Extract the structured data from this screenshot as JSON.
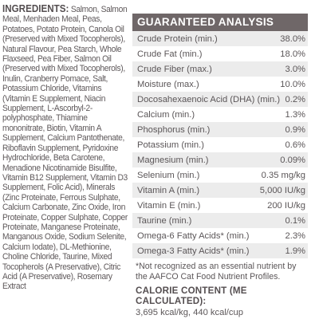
{
  "ingredients": {
    "label": "INGREDIENTS:",
    "text": "Salmon, Salmon Meal, Menhaden Meal, Peas, Potatoes, Potato Protein, Canola Oil (Preserved with Mixed Tocopherols), Natural Flavour, Pea Starch, Whole Flaxseed, Pea Fiber, Salmon Oil (Preserved with Mixed Tocopherols), Inulin, Cranberry Pomace, Salt, Potassium Chloride, Vitamins (Vitamin E Supplement, Niacin Supplement, L-Ascorbyl-2-polyphosphate, Thiamine mononitrate, Biotin, Vitamin A Supplement, Calcium Pantothenate, Riboflavin Supplement, Pyridoxine Hydrochloride, Beta Carotene, Menadione Nicotinamide Bisulfite, Vitamin B12 Supplement, Vitamin D3 Supplement, Folic Acid), Minerals (Zinc Proteinate, Ferrous Sulphate, Calcium Carbonate, Zinc Oxide, Iron Proteinate, Copper Sulphate, Copper Proteinate, Manganese Proteinate, Manganous Oxide, Sodium Selenite, Calcium Iodate), DL-Methionine, Choline Chloride, Taurine, Mixed Tocopherols (A Preservative), Citric Acid (A Preservative), Rosemary Extract"
  },
  "analysis": {
    "title": "GUARANTEED ANALYSIS",
    "rows": [
      {
        "name": "Crude Protein (min.)",
        "value": "38.0%"
      },
      {
        "name": "Crude Fat (min.)",
        "value": "18.0%"
      },
      {
        "name": "Crude Fiber (max.)",
        "value": "3.0%"
      },
      {
        "name": "Moisture (max.)",
        "value": "10.0%"
      },
      {
        "name": "Docosahexaenoic Acid (DHA) (min.)",
        "value": "0.2%"
      },
      {
        "name": "Calcium (min.)",
        "value": "1.3%"
      },
      {
        "name": "Phosphorus (min.)",
        "value": "0.9%"
      },
      {
        "name": "Potassium (min.)",
        "value": "0.6%"
      },
      {
        "name": "Magnesium (min.)",
        "value": "0.09%"
      },
      {
        "name": "Selenium (min.)",
        "value": "0.35 mg/kg"
      },
      {
        "name": "Vitamin A (min.)",
        "value": "5,000 IU/kg"
      },
      {
        "name": "Vitamin E (min.)",
        "value": "200 IU/kg"
      },
      {
        "name": "Taurine (min.)",
        "value": "0.1%"
      },
      {
        "name": "Omega-6 Fatty Acids* (min.)",
        "value": "2.3%"
      },
      {
        "name": "Omega-3 Fatty Acids* (min.)",
        "value": "1.9%"
      }
    ],
    "footnote": "*Not recognized as an essential nutrient by the AAFCO Cat Food Nutrient Profiles.",
    "calorie_title": "CALORIE CONTENT (ME CALCULATED):",
    "calorie_value": "3,695 kcal/kg, 440 kcal/cup"
  },
  "colors": {
    "header_bg": "#6f6768",
    "row_shade": "#ececec",
    "text": "#5b5658"
  }
}
